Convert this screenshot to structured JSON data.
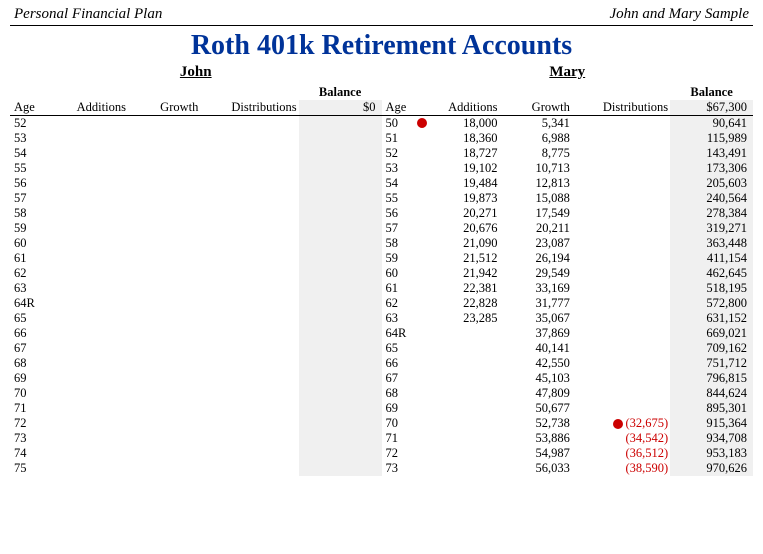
{
  "header": {
    "left": "Personal Financial Plan",
    "right": "John and Mary Sample"
  },
  "title": "Roth 401k Retirement Accounts",
  "columns": {
    "age": "Age",
    "additions": "Additions",
    "growth": "Growth",
    "distributions": "Distributions",
    "balance": "Balance"
  },
  "colors": {
    "title": "#003399",
    "negative": "#cc0000",
    "dot": "#cc0000",
    "balance_bg": "#f0f0f0",
    "rule": "#000000",
    "text": "#000000",
    "background": "#ffffff"
  },
  "people": [
    {
      "name": "John",
      "initial_balance": "$0",
      "rows": [
        {
          "age": "52"
        },
        {
          "age": "53"
        },
        {
          "age": "54"
        },
        {
          "age": "55"
        },
        {
          "age": "56"
        },
        {
          "age": "57"
        },
        {
          "age": "58"
        },
        {
          "age": "59"
        },
        {
          "age": "60"
        },
        {
          "age": "61"
        },
        {
          "age": "62"
        },
        {
          "age": "63"
        },
        {
          "age": "64R"
        },
        {
          "age": "65"
        },
        {
          "age": "66"
        },
        {
          "age": "67"
        },
        {
          "age": "68"
        },
        {
          "age": "69"
        },
        {
          "age": "70"
        },
        {
          "age": "71"
        },
        {
          "age": "72"
        },
        {
          "age": "73"
        },
        {
          "age": "74"
        },
        {
          "age": "75"
        }
      ]
    },
    {
      "name": "Mary",
      "initial_balance": "$67,300",
      "rows": [
        {
          "age": "50",
          "additions": "18,000",
          "growth": "5,341",
          "balance": "90,641",
          "dot_add": true
        },
        {
          "age": "51",
          "additions": "18,360",
          "growth": "6,988",
          "balance": "115,989"
        },
        {
          "age": "52",
          "additions": "18,727",
          "growth": "8,775",
          "balance": "143,491"
        },
        {
          "age": "53",
          "additions": "19,102",
          "growth": "10,713",
          "balance": "173,306"
        },
        {
          "age": "54",
          "additions": "19,484",
          "growth": "12,813",
          "balance": "205,603"
        },
        {
          "age": "55",
          "additions": "19,873",
          "growth": "15,088",
          "balance": "240,564"
        },
        {
          "age": "56",
          "additions": "20,271",
          "growth": "17,549",
          "balance": "278,384"
        },
        {
          "age": "57",
          "additions": "20,676",
          "growth": "20,211",
          "balance": "319,271"
        },
        {
          "age": "58",
          "additions": "21,090",
          "growth": "23,087",
          "balance": "363,448"
        },
        {
          "age": "59",
          "additions": "21,512",
          "growth": "26,194",
          "balance": "411,154"
        },
        {
          "age": "60",
          "additions": "21,942",
          "growth": "29,549",
          "balance": "462,645"
        },
        {
          "age": "61",
          "additions": "22,381",
          "growth": "33,169",
          "balance": "518,195"
        },
        {
          "age": "62",
          "additions": "22,828",
          "growth": "31,777",
          "balance": "572,800"
        },
        {
          "age": "63",
          "additions": "23,285",
          "growth": "35,067",
          "balance": "631,152"
        },
        {
          "age": "64R",
          "growth": "37,869",
          "balance": "669,021"
        },
        {
          "age": "65",
          "growth": "40,141",
          "balance": "709,162"
        },
        {
          "age": "66",
          "growth": "42,550",
          "balance": "751,712"
        },
        {
          "age": "67",
          "growth": "45,103",
          "balance": "796,815"
        },
        {
          "age": "68",
          "growth": "47,809",
          "balance": "844,624"
        },
        {
          "age": "69",
          "growth": "50,677",
          "balance": "895,301"
        },
        {
          "age": "70",
          "growth": "52,738",
          "distributions": "(32,675)",
          "balance": "915,364",
          "dot_dist": true
        },
        {
          "age": "71",
          "growth": "53,886",
          "distributions": "(34,542)",
          "balance": "934,708"
        },
        {
          "age": "72",
          "growth": "54,987",
          "distributions": "(36,512)",
          "balance": "953,183"
        },
        {
          "age": "73",
          "growth": "56,033",
          "distributions": "(38,590)",
          "balance": "970,626"
        }
      ]
    }
  ]
}
